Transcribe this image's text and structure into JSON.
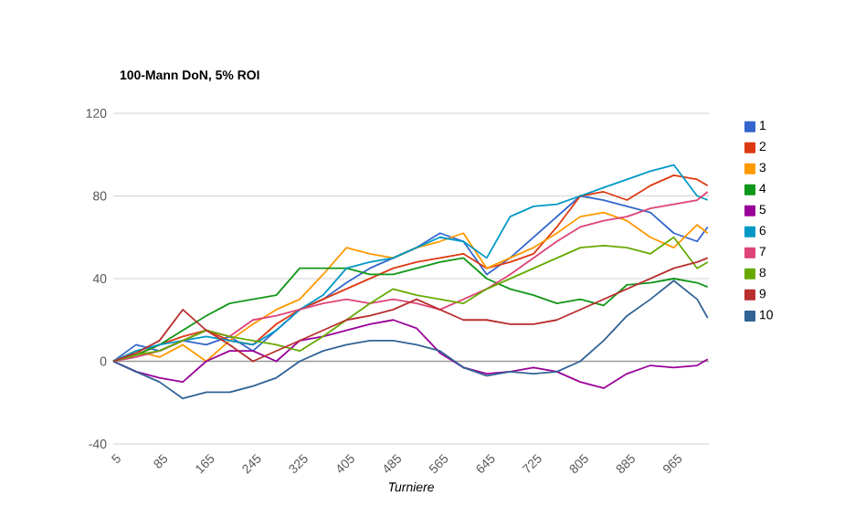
{
  "chart_data": {
    "type": "line",
    "title": "100-Mann DoN, 5% ROI",
    "xlabel": "Turniere",
    "x": [
      1,
      40,
      80,
      120,
      160,
      200,
      240,
      280,
      320,
      360,
      400,
      440,
      480,
      520,
      560,
      600,
      640,
      680,
      720,
      760,
      800,
      840,
      880,
      920,
      960,
      1000,
      1018
    ],
    "xlim": [
      1,
      1020
    ],
    "xticks": [
      5,
      85,
      165,
      245,
      325,
      405,
      485,
      565,
      645,
      725,
      805,
      885,
      965
    ],
    "ylim": [
      -40,
      120
    ],
    "yticks": [
      -40,
      0,
      40,
      80,
      120
    ],
    "grid": "y",
    "legend": "right",
    "marker": "none",
    "line_style": "solid",
    "ref_lines": [
      {
        "axis": "y",
        "value": 0,
        "color": "#999999"
      }
    ],
    "series": [
      {
        "name": "1",
        "color": "#3366cc",
        "values": [
          0,
          8,
          5,
          10,
          8,
          12,
          5,
          15,
          25,
          30,
          38,
          45,
          50,
          55,
          62,
          58,
          42,
          50,
          60,
          70,
          80,
          78,
          75,
          72,
          62,
          58,
          65
        ]
      },
      {
        "name": "2",
        "color": "#dc3912",
        "values": [
          0,
          3,
          8,
          12,
          15,
          10,
          8,
          18,
          25,
          30,
          35,
          40,
          45,
          48,
          50,
          52,
          45,
          48,
          52,
          65,
          80,
          82,
          78,
          85,
          90,
          88,
          85
        ]
      },
      {
        "name": "3",
        "color": "#ff9900",
        "values": [
          0,
          5,
          2,
          8,
          0,
          10,
          18,
          25,
          30,
          42,
          55,
          52,
          50,
          55,
          58,
          62,
          45,
          50,
          55,
          62,
          70,
          72,
          68,
          60,
          55,
          66,
          62
        ]
      },
      {
        "name": "4",
        "color": "#109618",
        "values": [
          0,
          3,
          8,
          15,
          22,
          28,
          30,
          32,
          45,
          45,
          45,
          42,
          42,
          45,
          48,
          50,
          40,
          35,
          32,
          28,
          30,
          27,
          37,
          38,
          40,
          38,
          36
        ]
      },
      {
        "name": "5",
        "color": "#990099",
        "values": [
          0,
          -5,
          -8,
          -10,
          0,
          5,
          5,
          0,
          10,
          12,
          15,
          18,
          20,
          16,
          4,
          -3,
          -6,
          -5,
          -3,
          -5,
          -10,
          -13,
          -6,
          -2,
          -3,
          -2,
          1
        ]
      },
      {
        "name": "6",
        "color": "#0099c6",
        "values": [
          0,
          5,
          8,
          10,
          12,
          10,
          8,
          15,
          25,
          32,
          45,
          48,
          50,
          55,
          60,
          58,
          50,
          70,
          75,
          76,
          80,
          84,
          88,
          92,
          95,
          80,
          78
        ]
      },
      {
        "name": "7",
        "color": "#dd4477",
        "values": [
          0,
          2,
          5,
          10,
          15,
          12,
          20,
          22,
          25,
          28,
          30,
          28,
          30,
          28,
          25,
          30,
          35,
          42,
          50,
          58,
          65,
          68,
          70,
          74,
          76,
          78,
          82
        ]
      },
      {
        "name": "8",
        "color": "#66aa00",
        "values": [
          0,
          3,
          5,
          10,
          15,
          12,
          10,
          8,
          5,
          12,
          20,
          28,
          35,
          32,
          30,
          28,
          35,
          40,
          45,
          50,
          55,
          56,
          55,
          52,
          60,
          45,
          48
        ]
      },
      {
        "name": "9",
        "color": "#b82e2e",
        "values": [
          0,
          4,
          10,
          25,
          15,
          8,
          0,
          5,
          10,
          15,
          20,
          22,
          25,
          30,
          25,
          20,
          20,
          18,
          18,
          20,
          25,
          30,
          35,
          40,
          45,
          48,
          50
        ]
      },
      {
        "name": "10",
        "color": "#316395",
        "values": [
          0,
          -5,
          -10,
          -18,
          -15,
          -15,
          -12,
          -8,
          0,
          5,
          8,
          10,
          10,
          8,
          5,
          -3,
          -7,
          -5,
          -6,
          -5,
          0,
          10,
          22,
          30,
          39,
          30,
          21
        ]
      }
    ]
  }
}
